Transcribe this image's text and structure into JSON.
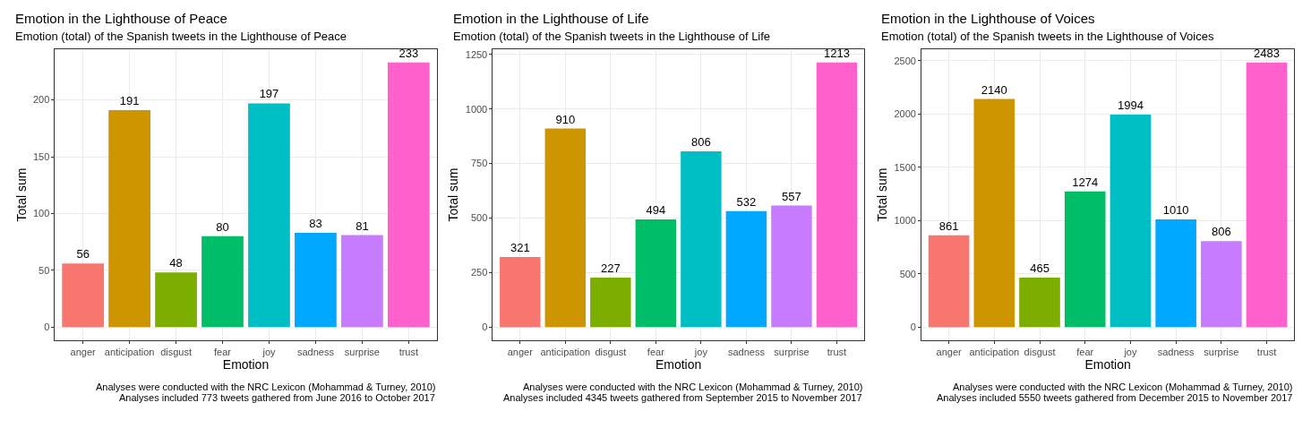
{
  "chart_data": [
    {
      "type": "bar",
      "title": "Emotion in the Lighthouse of Peace",
      "subtitle": "Emotion (total) of the Spanish tweets in the Lighthouse of Peace",
      "xlabel": "Emotion",
      "ylabel": "Total sum",
      "annotations": [
        "Analyses were conducted with the NRC Lexicon (Mohammad & Turney, 2010)",
        "Analyses included 773 tweets gathered from June 2016 to October 2017"
      ],
      "categories": [
        "anger",
        "anticipation",
        "disgust",
        "fear",
        "joy",
        "sadness",
        "surprise",
        "trust"
      ],
      "values": [
        56,
        191,
        48,
        80,
        197,
        83,
        81,
        233
      ],
      "colors": [
        "#f8766d",
        "#cd9600",
        "#7cae00",
        "#00be67",
        "#00bfc4",
        "#00a9ff",
        "#c77cff",
        "#ff61cc"
      ],
      "ylim": [
        -11.65,
        244.65
      ],
      "yticks": [
        0,
        50,
        100,
        150,
        200
      ],
      "data_labels": true,
      "grid": true
    },
    {
      "type": "bar",
      "title": "Emotion in the Lighthouse of Life",
      "subtitle": "Emotion (total) of the Spanish tweets in the Lighthouse of Life",
      "xlabel": "Emotion",
      "ylabel": "Total sum",
      "annotations": [
        "Analyses were conducted with the NRC Lexicon (Mohammad & Turney, 2010)",
        "Analyses included 4345 tweets gathered from September 2015 to November 2017"
      ],
      "categories": [
        "anger",
        "anticipation",
        "disgust",
        "fear",
        "joy",
        "sadness",
        "surprise",
        "trust"
      ],
      "values": [
        321,
        910,
        227,
        494,
        806,
        532,
        557,
        1213
      ],
      "colors": [
        "#f8766d",
        "#cd9600",
        "#7cae00",
        "#00be67",
        "#00bfc4",
        "#00a9ff",
        "#c77cff",
        "#ff61cc"
      ],
      "ylim": [
        -60.65,
        1273.65
      ],
      "yticks": [
        0,
        250,
        500,
        750,
        1000,
        1250
      ],
      "data_labels": true,
      "grid": true
    },
    {
      "type": "bar",
      "title": "Emotion in the Lighthouse of Voices",
      "subtitle": "Emotion (total) of the Spanish tweets in the Lighthouse of Voices",
      "xlabel": "Emotion",
      "ylabel": "Total sum",
      "annotations": [
        "Analyses were conducted with the NRC Lexicon (Mohammad & Turney, 2010)",
        "Analyses included 5550 tweets gathered from December 2015 to November 2017"
      ],
      "categories": [
        "anger",
        "anticipation",
        "disgust",
        "fear",
        "joy",
        "sadness",
        "surprise",
        "trust"
      ],
      "values": [
        861,
        2140,
        465,
        1274,
        1994,
        1010,
        806,
        2483
      ],
      "colors": [
        "#f8766d",
        "#cd9600",
        "#7cae00",
        "#00be67",
        "#00bfc4",
        "#00a9ff",
        "#c77cff",
        "#ff61cc"
      ],
      "ylim": [
        -124.15,
        2607.15
      ],
      "yticks": [
        0,
        500,
        1000,
        1500,
        2000,
        2500
      ],
      "data_labels": true,
      "grid": true
    }
  ]
}
